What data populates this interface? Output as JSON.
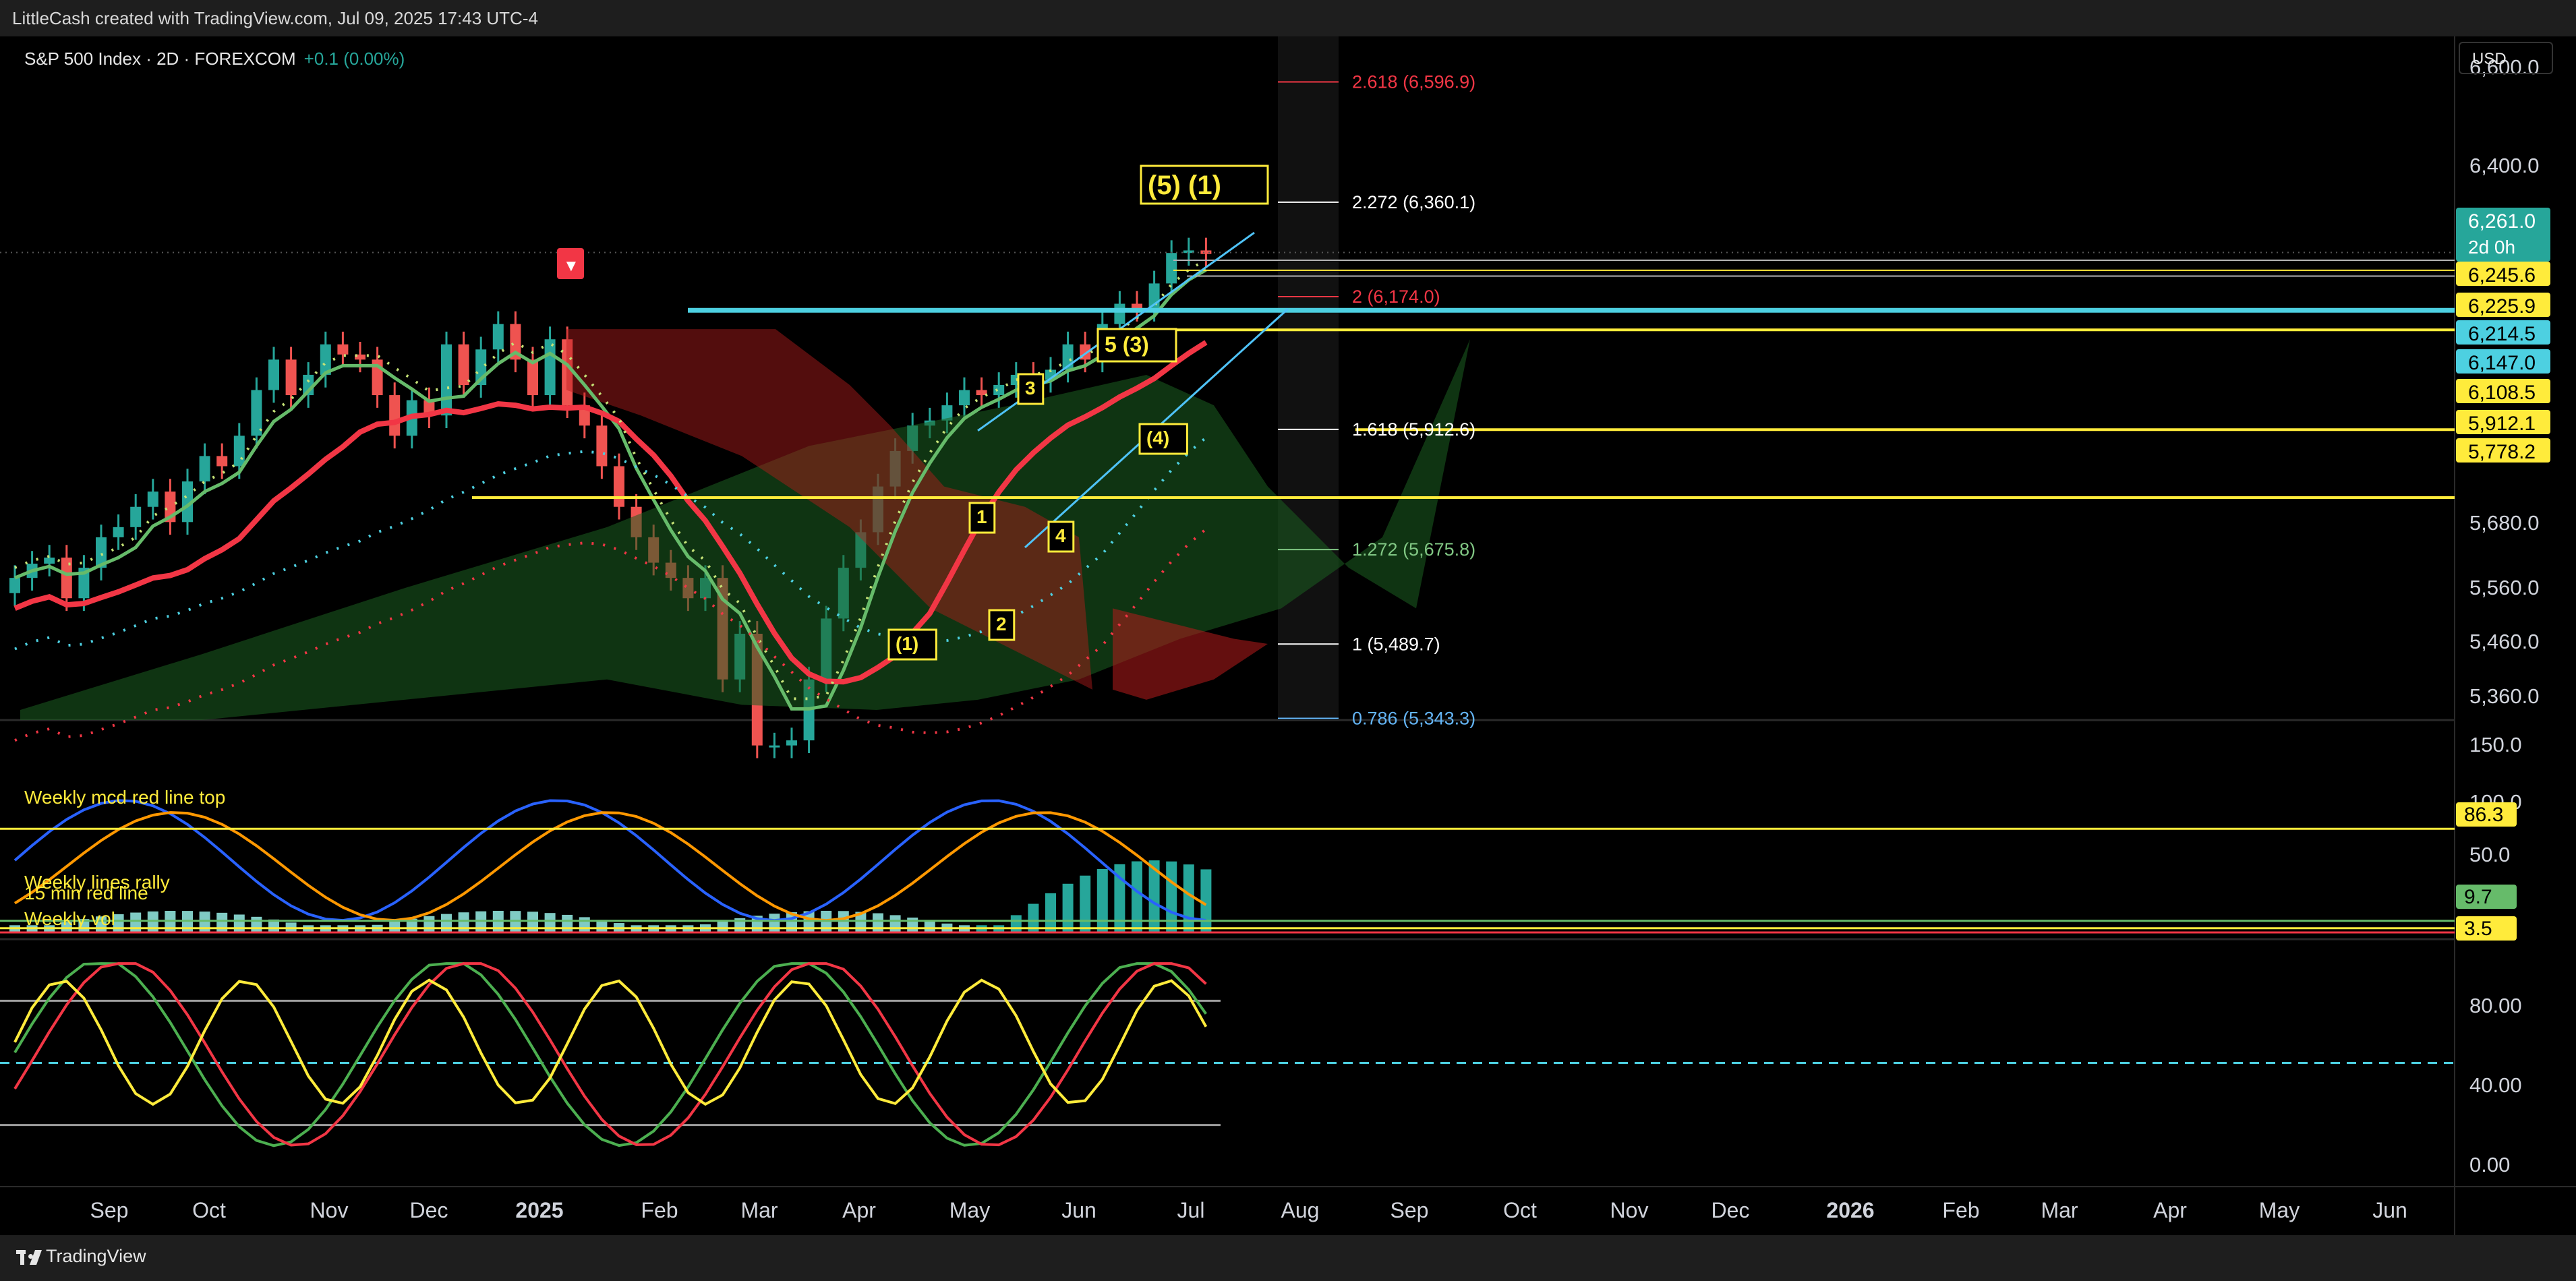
{
  "header": {
    "credit": "LittleCash created with TradingView.com, Jul 09, 2025 17:43 UTC-4"
  },
  "legend": {
    "symbol": "S&P 500 Index · 2D · FOREXCOM",
    "change": "+0.1 (0.00%)"
  },
  "currency": "USD",
  "footer": {
    "brand": "TradingView"
  },
  "colors": {
    "bg": "#000000",
    "up": "#26a69a",
    "down": "#ef5350",
    "yellow": "#ffeb3b",
    "cyan": "#4dd0e1",
    "blue": "#2962ff",
    "orange": "#ff9800",
    "red_line": "#f23645",
    "green_line": "#66bb6a"
  },
  "chart_data": {
    "type": "candlestick",
    "x_axis_labels": [
      "Sep",
      "Oct",
      "Nov",
      "Dec",
      "2025",
      "Feb",
      "Mar",
      "Apr",
      "May",
      "Jun",
      "Jul",
      "Aug",
      "Sep",
      "Oct",
      "Nov",
      "Dec",
      "2026",
      "Feb",
      "Mar",
      "Apr",
      "May",
      "Jun"
    ],
    "price_axis": {
      "ticks": [
        "6,600.0",
        "6,400.0",
        "5,680.0",
        "5,560.0",
        "5,460.0",
        "5,360.0"
      ],
      "range": [
        5340,
        6660
      ]
    },
    "price_close": [
      5620,
      5648,
      5660,
      5580,
      5640,
      5700,
      5720,
      5760,
      5790,
      5730,
      5810,
      5860,
      5840,
      5900,
      5990,
      6050,
      5980,
      6020,
      6080,
      6060,
      6050,
      5980,
      5900,
      5970,
      5940,
      6080,
      6000,
      6070,
      6120,
      6050,
      5980,
      6090,
      5960,
      5920,
      5840,
      5760,
      5700,
      5650,
      5620,
      5580,
      5620,
      5420,
      5510,
      5290,
      5290,
      5300,
      5420,
      5540,
      5640,
      5710,
      5800,
      5870,
      5920,
      5930,
      5960,
      5990,
      5980,
      6000,
      6020,
      6010,
      6030,
      6080,
      6050,
      6120,
      6160,
      6150,
      6200,
      6260,
      6265,
      6258
    ],
    "fib_levels": [
      {
        "label": "2.618 (6,596.9)",
        "value": 6596.9,
        "color": "#f23645"
      },
      {
        "label": "2.272 (6,360.1)",
        "value": 6360.1,
        "color": "#ffffff"
      },
      {
        "label": "2 (6,174.0)",
        "value": 6174.0,
        "color": "#f23645"
      },
      {
        "label": "1.618 (5,912.6)",
        "value": 5912.6,
        "color": "#ffffff"
      },
      {
        "label": "1.272 (5,675.8)",
        "value": 5675.8,
        "color": "#81c784"
      },
      {
        "label": "1 (5,489.7)",
        "value": 5489.7,
        "color": "#ffffff"
      },
      {
        "label": "0.786 (5,343.3)",
        "value": 5343.3,
        "color": "#64b5f6"
      }
    ],
    "price_tags": [
      {
        "text": "6,261.0",
        "sub": "2d 0h",
        "value": 6261.0,
        "bg": "#26a69a",
        "fg": "#ffffff"
      },
      {
        "text": "6,245.6",
        "value": 6245.6,
        "bg": "#ffeb3b",
        "fg": "#000000"
      },
      {
        "text": "6,225.9",
        "value": 6225.9,
        "bg": "#ffeb3b",
        "fg": "#000000"
      },
      {
        "text": "6,214.5",
        "value": 6214.5,
        "bg": "#4dd0e1",
        "fg": "#000000"
      },
      {
        "text": "6,147.0",
        "value": 6147.0,
        "bg": "#4dd0e1",
        "fg": "#000000"
      },
      {
        "text": "6,108.5",
        "value": 6108.5,
        "bg": "#ffeb3b",
        "fg": "#000000"
      },
      {
        "text": "5,912.1",
        "value": 5912.1,
        "bg": "#ffeb3b",
        "fg": "#000000"
      },
      {
        "text": "5,778.2",
        "value": 5778.2,
        "bg": "#ffeb3b",
        "fg": "#000000"
      }
    ],
    "wave_labels": [
      "(5) (1)",
      "5 (3)",
      "3",
      "1",
      "2",
      "4",
      "(4)",
      "(1)"
    ],
    "macd_panel": {
      "ticks": [
        "150.0",
        "100.0",
        "50.0"
      ],
      "tags": [
        {
          "text": "86.3",
          "bg": "#ffeb3b"
        },
        {
          "text": "9.7",
          "bg": "#66bb6a"
        },
        {
          "text": "3.5",
          "bg": "#ffeb3b"
        }
      ],
      "line_labels": [
        "Weekly mcd red line top",
        "Weekly lines rally",
        "15 min red line",
        "Weekly vol"
      ]
    },
    "stoch_panel": {
      "ticks": [
        "80.00",
        "40.00",
        "0.00"
      ],
      "range": [
        0,
        100
      ]
    }
  }
}
